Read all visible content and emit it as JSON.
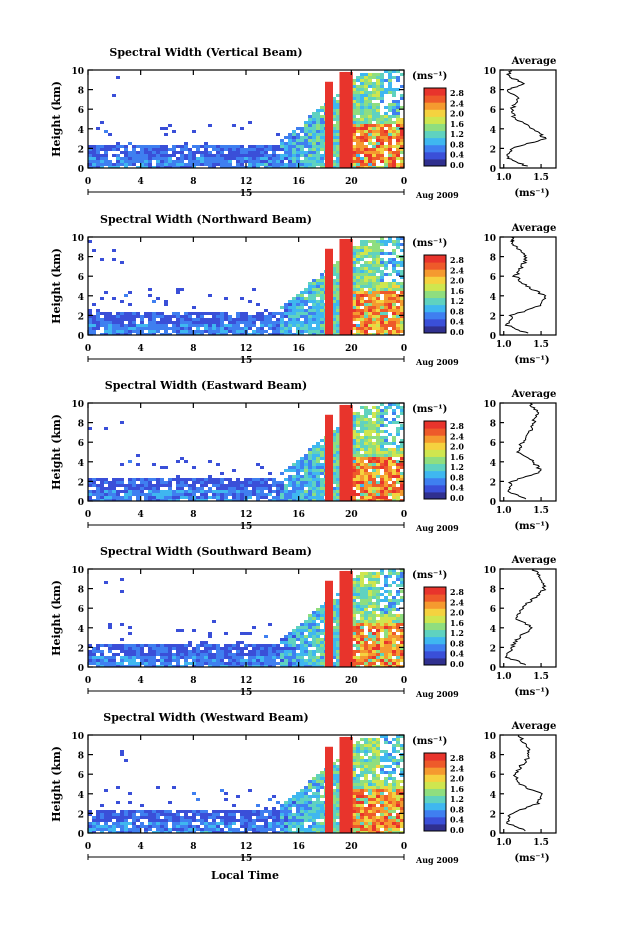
{
  "x_label": "Local Time",
  "date_label": "Aug 2009",
  "day_label": "15",
  "colorbar": {
    "unit": "(ms⁻¹)",
    "ticks": [
      "2.8",
      "2.4",
      "2.0",
      "1.6",
      "1.2",
      "0.8",
      "0.4",
      "0.0"
    ],
    "colors": [
      "#ffffff",
      "#30308f",
      "#3a4fd8",
      "#3f7ff0",
      "#3fb7f0",
      "#5fd2c0",
      "#8fde7f",
      "#cfe64f",
      "#f5d23f",
      "#f59a2f",
      "#ee5a2a",
      "#e8342c"
    ]
  },
  "profile_title": "Average",
  "profile_xlabel": "(ms⁻¹)",
  "chart_data": [
    {
      "type": "heatmap",
      "title": "Spectral Width (Vertical Beam)",
      "ylabel": "Height (km)",
      "xlabel": "Local Time",
      "x_ticks": [
        "0",
        "4",
        "8",
        "12",
        "16",
        "20",
        "0"
      ],
      "xlim": [
        0,
        24
      ],
      "y_ticks": [
        "0",
        "2",
        "4",
        "6",
        "8",
        "10"
      ],
      "ylim": [
        0,
        10
      ],
      "profile": {
        "title": "Average",
        "x_ticks": [
          "1.0",
          "1.5"
        ],
        "y_ticks": [
          "0",
          "2",
          "4",
          "6",
          "8",
          "10"
        ],
        "values": [
          [
            1.3,
            0.2
          ],
          [
            1.05,
            1
          ],
          [
            1.1,
            2
          ],
          [
            1.55,
            3
          ],
          [
            1.45,
            3.8
          ],
          [
            1.15,
            5
          ],
          [
            1.1,
            6
          ],
          [
            1.2,
            7
          ],
          [
            1.05,
            8
          ],
          [
            1.3,
            8.6
          ],
          [
            1.05,
            9.3
          ],
          [
            1.1,
            10
          ]
        ]
      }
    },
    {
      "type": "heatmap",
      "title": "Spectral Width (Northward Beam)",
      "ylabel": "Height (km)",
      "xlabel": "Local Time",
      "x_ticks": [
        "0",
        "4",
        "8",
        "12",
        "16",
        "20",
        "0"
      ],
      "xlim": [
        0,
        24
      ],
      "y_ticks": [
        "0",
        "2",
        "4",
        "6",
        "8",
        "10"
      ],
      "ylim": [
        0,
        10
      ],
      "profile": {
        "title": "Average",
        "x_ticks": [
          "1.0",
          "1.5"
        ],
        "y_ticks": [
          "0",
          "2",
          "4",
          "6",
          "8",
          "10"
        ],
        "values": [
          [
            1.3,
            0.2
          ],
          [
            1.05,
            1
          ],
          [
            1.1,
            2
          ],
          [
            1.5,
            3
          ],
          [
            1.55,
            4
          ],
          [
            1.3,
            5
          ],
          [
            1.15,
            6
          ],
          [
            1.25,
            7
          ],
          [
            1.3,
            8
          ],
          [
            1.2,
            8.8
          ],
          [
            1.1,
            9.5
          ],
          [
            1.15,
            10
          ]
        ]
      }
    },
    {
      "type": "heatmap",
      "title": "Spectral Width (Eastward Beam)",
      "ylabel": "Height (km)",
      "xlabel": "Local Time",
      "x_ticks": [
        "0",
        "4",
        "8",
        "12",
        "16",
        "20",
        "0"
      ],
      "xlim": [
        0,
        24
      ],
      "y_ticks": [
        "0",
        "2",
        "4",
        "6",
        "8",
        "10"
      ],
      "ylim": [
        0,
        10
      ],
      "profile": {
        "title": "Average",
        "x_ticks": [
          "1.0",
          "1.5"
        ],
        "y_ticks": [
          "0",
          "2",
          "4",
          "6",
          "8",
          "10"
        ],
        "values": [
          [
            1.3,
            0.2
          ],
          [
            1.05,
            1
          ],
          [
            1.1,
            2
          ],
          [
            1.5,
            3
          ],
          [
            1.4,
            4
          ],
          [
            1.2,
            5
          ],
          [
            1.25,
            6
          ],
          [
            1.35,
            7
          ],
          [
            1.4,
            8
          ],
          [
            1.45,
            9
          ],
          [
            1.35,
            10
          ]
        ]
      }
    },
    {
      "type": "heatmap",
      "title": "Spectral Width (Southward Beam)",
      "ylabel": "Height (km)",
      "xlabel": "Local Time",
      "x_ticks": [
        "0",
        "4",
        "8",
        "12",
        "16",
        "20",
        "0"
      ],
      "xlim": [
        0,
        24
      ],
      "y_ticks": [
        "0",
        "2",
        "4",
        "6",
        "8",
        "10"
      ],
      "ylim": [
        0,
        10
      ],
      "profile": {
        "title": "Average",
        "x_ticks": [
          "1.0",
          "1.5"
        ],
        "y_ticks": [
          "0",
          "2",
          "4",
          "6",
          "8",
          "10"
        ],
        "values": [
          [
            1.3,
            0.2
          ],
          [
            1.05,
            1
          ],
          [
            1.1,
            2
          ],
          [
            1.2,
            3
          ],
          [
            1.4,
            4
          ],
          [
            1.15,
            5
          ],
          [
            1.25,
            6
          ],
          [
            1.4,
            7
          ],
          [
            1.55,
            8
          ],
          [
            1.5,
            9
          ],
          [
            1.4,
            10
          ]
        ]
      }
    },
    {
      "type": "heatmap",
      "title": "Spectral Width (Westward Beam)",
      "ylabel": "Height (km)",
      "xlabel": "Local Time",
      "x_ticks": [
        "0",
        "4",
        "8",
        "12",
        "16",
        "20",
        "0"
      ],
      "xlim": [
        0,
        24
      ],
      "y_ticks": [
        "0",
        "2",
        "4",
        "6",
        "8",
        "10"
      ],
      "ylim": [
        0,
        10
      ],
      "profile": {
        "title": "Average",
        "x_ticks": [
          "1.0",
          "1.5"
        ],
        "y_ticks": [
          "0",
          "2",
          "4",
          "6",
          "8",
          "10"
        ],
        "values": [
          [
            1.3,
            0.2
          ],
          [
            1.05,
            1
          ],
          [
            1.1,
            2
          ],
          [
            1.45,
            3
          ],
          [
            1.5,
            4
          ],
          [
            1.2,
            5
          ],
          [
            1.15,
            6
          ],
          [
            1.25,
            7
          ],
          [
            1.35,
            8
          ],
          [
            1.3,
            9
          ],
          [
            1.2,
            10
          ]
        ]
      }
    }
  ]
}
